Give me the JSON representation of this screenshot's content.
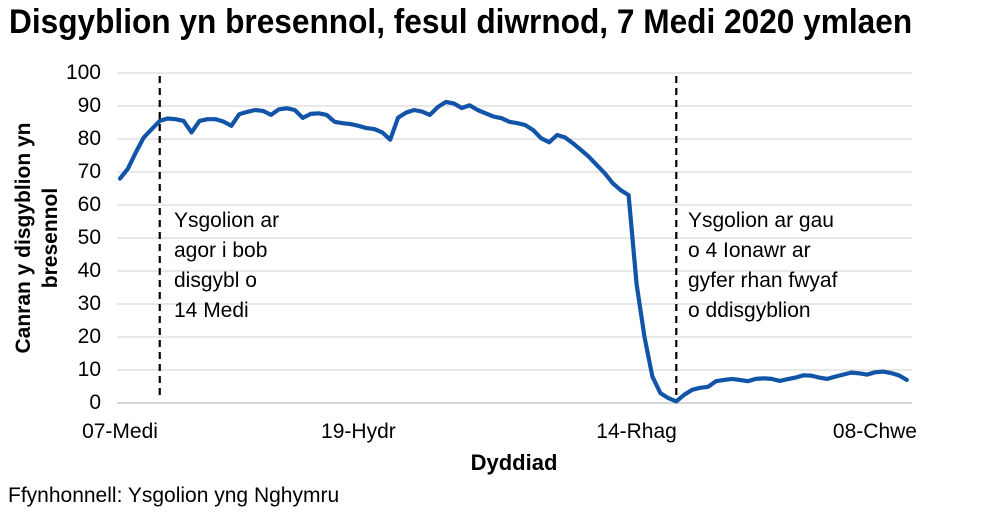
{
  "title": "Disgyblion yn bresennol, fesul diwrnod, 7 Medi 2020 ymlaen",
  "source_note": "Ffynhonnell: Ysgolion yng Nghymru",
  "colors": {
    "line": "#1254A8",
    "grid": "#D9D9D9",
    "axis_line": "#BFBFBF",
    "dashed_marker": "#000000",
    "text": "#000000",
    "background": "#FFFFFF"
  },
  "chart_data": {
    "type": "line",
    "title": "Disgyblion yn bresennol, fesul diwrnod, 7 Medi 2020 ymlaen",
    "xlabel": "Dyddiad",
    "ylabel": "Canran y disgyblion yn bresennol",
    "ylim": [
      0,
      100
    ],
    "y_ticks": [
      0,
      10,
      20,
      30,
      40,
      50,
      60,
      70,
      80,
      90,
      100
    ],
    "x_ticks": [
      {
        "label": "07-Medi",
        "day": 0
      },
      {
        "label": "19-Hydr",
        "day": 30
      },
      {
        "label": "14-Rhag",
        "day": 65
      },
      {
        "label": "08-Chwe",
        "day": 95
      }
    ],
    "grid": "horizontal",
    "legend": false,
    "series": [
      {
        "name": "Canran y disgyblion yn bresennol",
        "color": "#1254A8",
        "values": [
          68,
          71,
          76,
          80.5,
          83,
          85.5,
          86.2,
          86,
          85.5,
          82,
          85.5,
          86,
          86,
          85.3,
          84,
          87.5,
          88.2,
          88.8,
          88.5,
          87.3,
          89,
          89.3,
          88.8,
          86.4,
          87.6,
          87.8,
          87.3,
          85.2,
          84.8,
          84.5,
          84,
          83.3,
          83,
          82,
          79.8,
          86.5,
          88,
          88.8,
          88.3,
          87.3,
          89.7,
          91.2,
          90.8,
          89.4,
          90.2,
          88.8,
          87.8,
          86.8,
          86.3,
          85.2,
          84.8,
          84.2,
          82.7,
          80.2,
          79,
          81.2,
          80.5,
          78.7,
          76.7,
          74.6,
          72.1,
          69.6,
          66.6,
          64.5,
          63,
          36,
          20,
          8,
          3,
          1.5,
          0.5,
          2.5,
          4,
          4.6,
          4.9,
          6.6,
          7,
          7.3,
          7,
          6.6,
          7.3,
          7.5,
          7.3,
          6.7,
          7.2,
          7.7,
          8.4,
          8.3,
          7.7,
          7.3,
          8,
          8.6,
          9.2,
          9,
          8.6,
          9.3,
          9.5,
          9.1,
          8.4,
          7
        ]
      }
    ],
    "annotations": [
      {
        "day": 5,
        "lines": [
          "Ysgolion ar",
          "agor i bob",
          "disgybl o",
          "14 Medi"
        ]
      },
      {
        "day": 70,
        "lines": [
          "Ysgolion ar gau",
          "o 4 Ionawr ar",
          "gyfer rhan fwyaf",
          "o ddisgyblion"
        ]
      }
    ]
  }
}
